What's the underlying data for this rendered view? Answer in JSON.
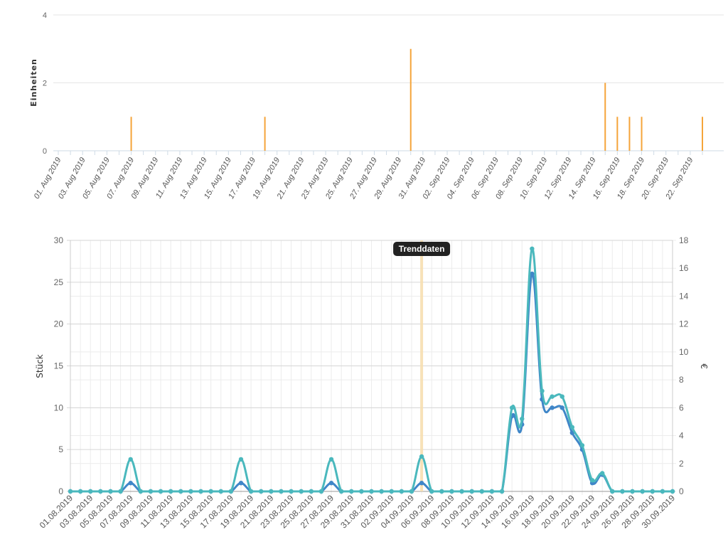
{
  "chart_data": [
    {
      "type": "bar",
      "ylabel": "Einheiten",
      "ylim": [
        0,
        4
      ],
      "yticks": [
        0,
        2,
        4
      ],
      "grid": true,
      "bar_color": "#f5a43a",
      "days": [
        "01.08",
        "02.08",
        "03.08",
        "04.08",
        "05.08",
        "06.08",
        "07.08",
        "08.08",
        "09.08",
        "10.08",
        "11.08",
        "12.08",
        "13.08",
        "14.08",
        "15.08",
        "16.08",
        "17.08",
        "18.08",
        "19.08",
        "20.08",
        "21.08",
        "22.08",
        "23.08",
        "24.08",
        "25.08",
        "26.08",
        "27.08",
        "28.08",
        "29.08",
        "30.08",
        "31.08",
        "01.09",
        "02.09",
        "03.09",
        "04.09",
        "05.09",
        "06.09",
        "07.09",
        "08.09",
        "09.09",
        "10.09",
        "11.09",
        "12.09",
        "13.09",
        "14.09",
        "15.09",
        "16.09",
        "17.09",
        "18.09",
        "19.09",
        "20.09",
        "21.09",
        "22.09",
        "23.09"
      ],
      "values": [
        0,
        0,
        0,
        0,
        0,
        0,
        1,
        0,
        0,
        0,
        0,
        0,
        0,
        0,
        0,
        0,
        0,
        1,
        0,
        0,
        0,
        0,
        0,
        0,
        0,
        0,
        0,
        0,
        0,
        3,
        0,
        0,
        0,
        0,
        0,
        0,
        0,
        0,
        0,
        0,
        0,
        0,
        0,
        0,
        0,
        2,
        1,
        1,
        1,
        0,
        0,
        0,
        0,
        1
      ],
      "tick_labels": [
        "01. Aug 2019",
        "03. Aug 2019",
        "05. Aug 2019",
        "07. Aug 2019",
        "09. Aug 2019",
        "11. Aug 2019",
        "13. Aug 2019",
        "15. Aug 2019",
        "17. Aug 2019",
        "19. Aug 2019",
        "21. Aug 2019",
        "23. Aug 2019",
        "25. Aug 2019",
        "27. Aug 2019",
        "29. Aug 2019",
        "31. Aug 2019",
        "02. Sep 2019",
        "04. Sep 2019",
        "06. Sep 2019",
        "08. Sep 2019",
        "10. Sep 2019",
        "12. Sep 2019",
        "14. Sep 2019",
        "16. Sep 2019",
        "18. Sep 2019",
        "20. Sep 2019",
        "22. Sep 2019"
      ]
    },
    {
      "type": "line",
      "ylabel": "Stück",
      "y2label": "€",
      "ylim": [
        0,
        30
      ],
      "yticks": [
        0,
        5,
        10,
        15,
        20,
        25,
        30
      ],
      "y2lim": [
        0,
        18
      ],
      "y2ticks": [
        0,
        2,
        4,
        6,
        8,
        10,
        12,
        14,
        16,
        18
      ],
      "grid": true,
      "trend_label": "Trenddaten",
      "trend_date": "05.09.2019",
      "x": [
        "01.08.2019",
        "02.08.2019",
        "03.08.2019",
        "04.08.2019",
        "05.08.2019",
        "06.08.2019",
        "07.08.2019",
        "08.08.2019",
        "09.08.2019",
        "10.08.2019",
        "11.08.2019",
        "12.08.2019",
        "13.08.2019",
        "14.08.2019",
        "15.08.2019",
        "16.08.2019",
        "17.08.2019",
        "18.08.2019",
        "19.08.2019",
        "20.08.2019",
        "21.08.2019",
        "22.08.2019",
        "23.08.2019",
        "24.08.2019",
        "25.08.2019",
        "26.08.2019",
        "27.08.2019",
        "28.08.2019",
        "29.08.2019",
        "30.08.2019",
        "31.08.2019",
        "01.09.2019",
        "02.09.2019",
        "03.09.2019",
        "04.09.2019",
        "05.09.2019",
        "06.09.2019",
        "07.09.2019",
        "08.09.2019",
        "09.09.2019",
        "10.09.2019",
        "11.09.2019",
        "12.09.2019",
        "13.09.2019",
        "14.09.2019",
        "15.09.2019",
        "16.09.2019",
        "17.09.2019",
        "18.09.2019",
        "19.09.2019",
        "20.09.2019",
        "21.09.2019",
        "22.09.2019",
        "23.09.2019",
        "24.09.2019",
        "25.09.2019",
        "26.09.2019",
        "27.09.2019",
        "28.09.2019",
        "29.09.2019",
        "30.09.2019"
      ],
      "series": [
        {
          "axis": "left",
          "color": "#3f86c8",
          "values": [
            0,
            0,
            0,
            0,
            0,
            0,
            1,
            0,
            0,
            0,
            0,
            0,
            0,
            0,
            0,
            0,
            0,
            1,
            0,
            0,
            0,
            0,
            0,
            0,
            0,
            0,
            1,
            0,
            0,
            0,
            0,
            0,
            0,
            0,
            0,
            1,
            0,
            0,
            0,
            0,
            0,
            0,
            0,
            0,
            9,
            8,
            26,
            11,
            10,
            10,
            7,
            5,
            1,
            2,
            0,
            0,
            0,
            0,
            0,
            0,
            0
          ]
        },
        {
          "axis": "right",
          "color": "#4ab8bd",
          "values": [
            0,
            0,
            0,
            0,
            0,
            0,
            2.3,
            0,
            0,
            0,
            0,
            0,
            0,
            0,
            0,
            0,
            0,
            2.3,
            0,
            0,
            0,
            0,
            0,
            0,
            0,
            0,
            2.3,
            0,
            0,
            0,
            0,
            0,
            0,
            0,
            0,
            2.5,
            0,
            0,
            0,
            0,
            0,
            0,
            0,
            0,
            6,
            5.2,
            17.4,
            7.2,
            6.8,
            6.8,
            4.6,
            3.3,
            0.8,
            1.3,
            0,
            0,
            0,
            0,
            0,
            0,
            0
          ]
        }
      ]
    }
  ]
}
